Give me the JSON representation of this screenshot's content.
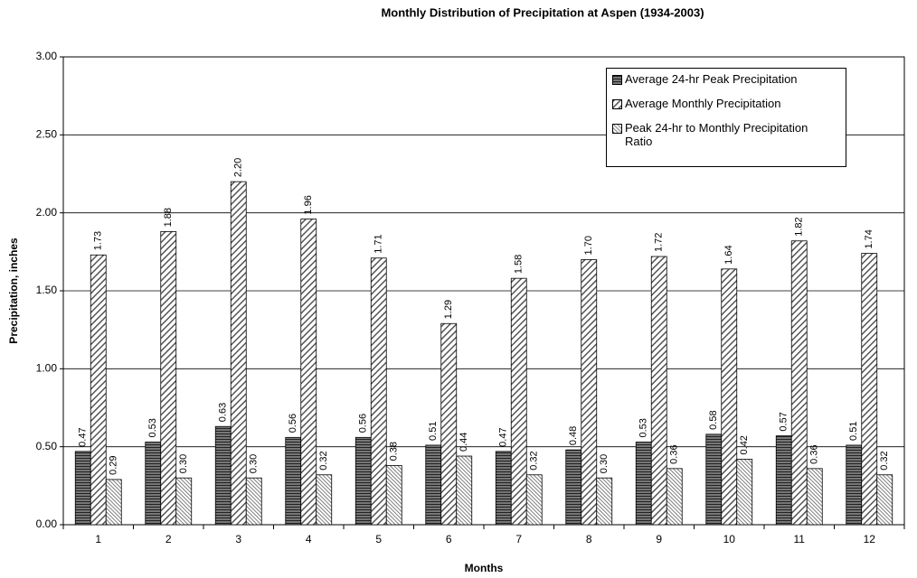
{
  "chart_data": {
    "type": "bar",
    "title": "Monthly Distribution of Precipitation at Aspen (1934-2003)",
    "x_label": "Months",
    "y_label": "Precipitation, inches",
    "categories": [
      "1",
      "2",
      "3",
      "4",
      "5",
      "6",
      "7",
      "8",
      "9",
      "10",
      "11",
      "12"
    ],
    "series": [
      {
        "name": "Average 24-hr Peak Precipitation",
        "color": "#555555",
        "pattern": "horizontal",
        "values": [
          0.47,
          0.53,
          0.63,
          0.56,
          0.56,
          0.51,
          0.47,
          0.48,
          0.53,
          0.58,
          0.57,
          0.51
        ],
        "value_labels": [
          "0.47",
          "0.53",
          "0.63",
          "0.56",
          "0.56",
          "0.51",
          "0.47",
          "0.48",
          "0.53",
          "0.58",
          "0.57",
          "0.51"
        ]
      },
      {
        "name": "Average Monthly Precipitation",
        "color": "#555555",
        "pattern": "diagonal",
        "values": [
          1.73,
          1.88,
          2.2,
          1.96,
          1.71,
          1.29,
          1.58,
          1.7,
          1.72,
          1.64,
          1.82,
          1.74
        ],
        "value_labels": [
          "1.73",
          "1.88",
          "2.20",
          "1.96",
          "1.71",
          "1.29",
          "1.58",
          "1.70",
          "1.72",
          "1.64",
          "1.82",
          "1.74"
        ]
      },
      {
        "name": "Peak 24-hr to Monthly Precipitation Ratio",
        "color": "#555555",
        "pattern": "back-diagonal",
        "values": [
          0.29,
          0.3,
          0.3,
          0.32,
          0.38,
          0.44,
          0.32,
          0.3,
          0.36,
          0.42,
          0.36,
          0.32
        ],
        "value_labels": [
          "0.29",
          "0.30",
          "0.30",
          "0.32",
          "0.38",
          "0.44",
          "0.32",
          "0.30",
          "0.36",
          "0.42",
          "0.36",
          "0.32"
        ]
      }
    ],
    "ylim": [
      0,
      3
    ],
    "yticks": [
      {
        "value": 0,
        "label": "0.00"
      },
      {
        "value": 0.5,
        "label": "0.50"
      },
      {
        "value": 1,
        "label": "1.00"
      },
      {
        "value": 1.5,
        "label": "1.50"
      },
      {
        "value": 2,
        "label": "2.00"
      },
      {
        "value": 2.5,
        "label": "2.50"
      },
      {
        "value": 3,
        "label": "3.00"
      }
    ],
    "grid": true,
    "legend": "upper right"
  }
}
